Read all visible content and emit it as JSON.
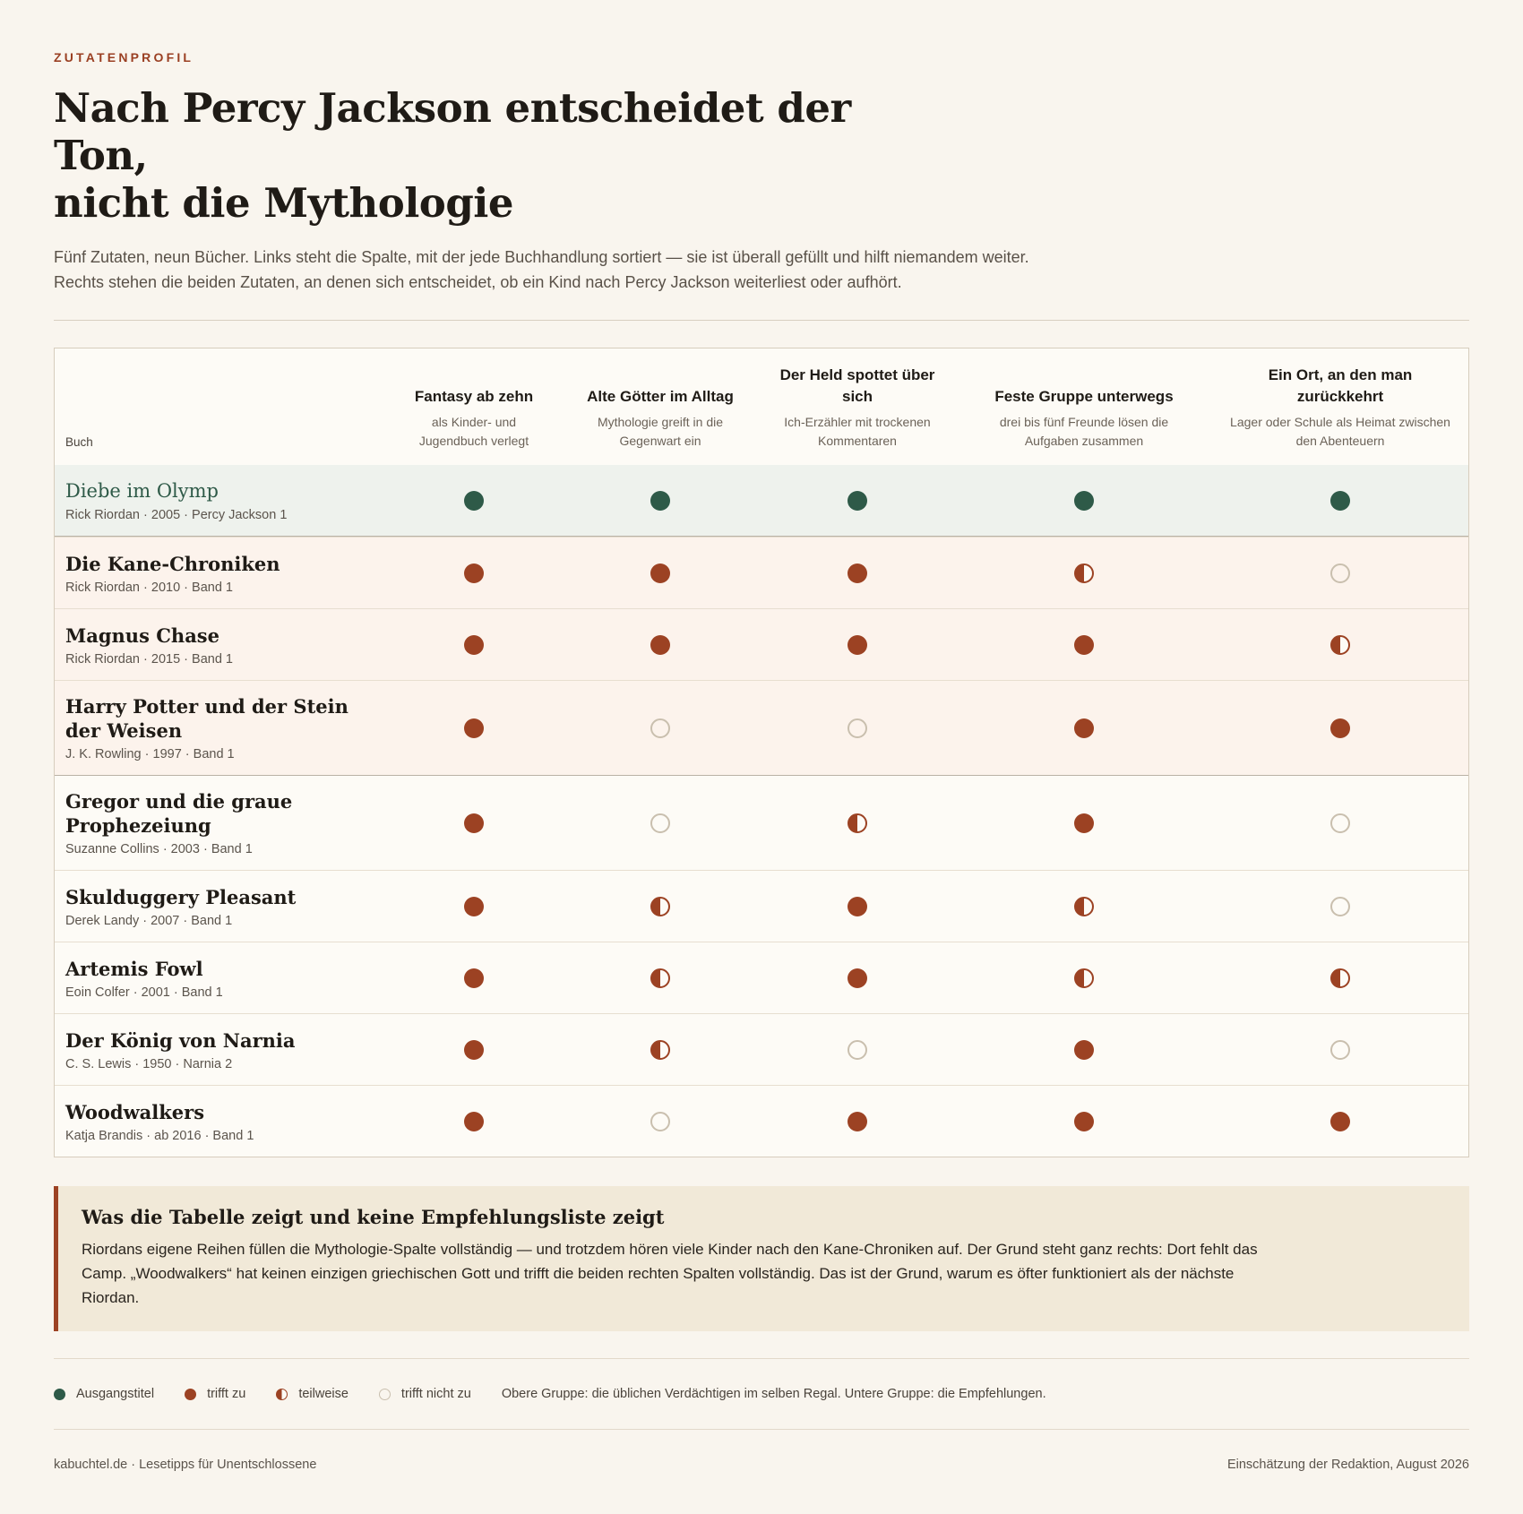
{
  "kicker": "ZUTATENPROFIL",
  "headline_line1": "Nach Percy Jackson entscheidet der Ton,",
  "headline_line2": "nicht die Mythologie",
  "dek_line1": "Fünf Zutaten, neun Bücher. Links steht die Spalte, mit der jede Buchhandlung sortiert — sie ist überall gefüllt und hilft niemandem weiter.",
  "dek_line2": "Rechts stehen die beiden Zutaten, an denen sich entscheidet, ob ein Kind nach Percy Jackson weiterliest oder aufhört.",
  "table": {
    "book_header": "Buch",
    "columns": [
      {
        "title": "Fantasy ab zehn",
        "sub": "als Kinder- und Jugendbuch verlegt"
      },
      {
        "title": "Alte Götter im Alltag",
        "sub": "Mythologie greift in die Gegenwart ein"
      },
      {
        "title": "Der Held spottet über sich",
        "sub": "Ich-Erzähler mit trockenen Kommentaren"
      },
      {
        "title": "Feste Gruppe unterwegs",
        "sub": "drei bis fünf Freunde lösen die Aufgaben zusammen"
      },
      {
        "title": "Ein Ort, an den man zurückkehrt",
        "sub": "Lager oder Schule als Heimat zwischen den Abenteuern"
      }
    ],
    "rows": [
      {
        "title": "Diebe im Olymp",
        "meta": "Rick Riordan · 2005 · Percy Jackson 1",
        "group": "origin",
        "values": [
          "origin",
          "origin",
          "origin",
          "origin",
          "origin"
        ]
      },
      {
        "title": "Die Kane-Chroniken",
        "meta": "Rick Riordan · 2010 · Band 1",
        "group": "usual",
        "values": [
          "full",
          "full",
          "full",
          "half",
          "none"
        ]
      },
      {
        "title": "Magnus Chase",
        "meta": "Rick Riordan · 2015 · Band 1",
        "group": "usual",
        "values": [
          "full",
          "full",
          "full",
          "full",
          "half"
        ]
      },
      {
        "title": "Harry Potter und der Stein der Weisen",
        "meta": "J. K. Rowling · 1997 · Band 1",
        "group": "usual",
        "values": [
          "full",
          "none",
          "none",
          "full",
          "full"
        ]
      },
      {
        "title": "Gregor und die graue Prophezeiung",
        "meta": "Suzanne Collins · 2003 · Band 1",
        "group": "recommended",
        "values": [
          "full",
          "none",
          "half",
          "full",
          "none"
        ]
      },
      {
        "title": "Skulduggery Pleasant",
        "meta": "Derek Landy · 2007 · Band 1",
        "group": "recommended",
        "values": [
          "full",
          "half",
          "full",
          "half",
          "none"
        ]
      },
      {
        "title": "Artemis Fowl",
        "meta": "Eoin Colfer · 2001 · Band 1",
        "group": "recommended",
        "values": [
          "full",
          "half",
          "full",
          "half",
          "half"
        ]
      },
      {
        "title": "Der König von Narnia",
        "meta": "C. S. Lewis · 1950 · Narnia 2",
        "group": "recommended",
        "values": [
          "full",
          "half",
          "none",
          "full",
          "none"
        ]
      },
      {
        "title": "Woodwalkers",
        "meta": "Katja Brandis · ab 2016 · Band 1",
        "group": "recommended",
        "values": [
          "full",
          "none",
          "full",
          "full",
          "full"
        ]
      }
    ]
  },
  "note": {
    "title": "Was die Tabelle zeigt und keine Empfehlungsliste zeigt",
    "body": "Riordans eigene Reihen füllen die Mythologie-Spalte vollständig — und trotzdem hören viele Kinder nach den Kane-Chroniken auf. Der Grund steht ganz rechts: Dort fehlt das Camp. „Woodwalkers“ hat keinen einzigen griechischen Gott und trifft die beiden rechten Spalten vollständig. Das ist der Grund, warum es öfter funktioniert als der nächste Riordan."
  },
  "legend": {
    "origin": "Ausgangstitel",
    "full": "trifft zu",
    "half": "teilweise",
    "none": "trifft nicht zu",
    "groups": "Obere Gruppe: die üblichen Verdächtigen im selben Regal. Untere Gruppe: die Empfehlungen."
  },
  "footer": {
    "left": "kabuchtel.de · Lesetipps für Unentschlossene",
    "right": "Einschätzung der Redaktion, August 2026"
  },
  "colors": {
    "accent": "#9c4223",
    "origin": "#2e5a48",
    "background": "#f9f5ee"
  }
}
